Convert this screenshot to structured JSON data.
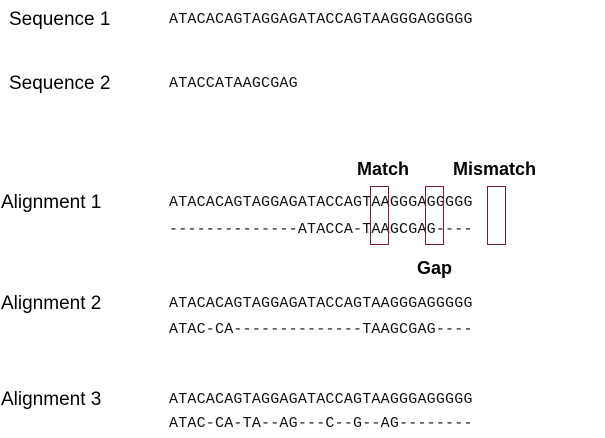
{
  "sequence1": {
    "label": "Sequence 1",
    "seq": "ATACACAGTAGGAGATACCAGTAAGGGAGGGGG"
  },
  "sequence2": {
    "label": "Sequence 2",
    "seq": "ATACCATAAGCGAG"
  },
  "alignments": [
    {
      "label": "Alignment 1",
      "top": "ATACACAGTAGGAGATACCAGTAAGGGAGGGGG",
      "bottom": "--------------ATACCA-TAAGCGAG----"
    },
    {
      "label": "Alignment 2",
      "top": "ATACACAGTAGGAGATACCAGTAAGGGAGGGGG",
      "bottom": "ATAC-CA--------------TAAGCGAG----"
    },
    {
      "label": "Alignment 3",
      "top": "ATACACAGTAGGAGATACCAGTAAGGGAGGGGG",
      "bottom": "ATAC-CA-TA--AG---C--G--AG--------"
    }
  ],
  "annotations": {
    "match": "Match",
    "mismatch": "Mismatch",
    "gap": "Gap"
  },
  "colors": {
    "highlight_box": "#7a1f2b"
  }
}
